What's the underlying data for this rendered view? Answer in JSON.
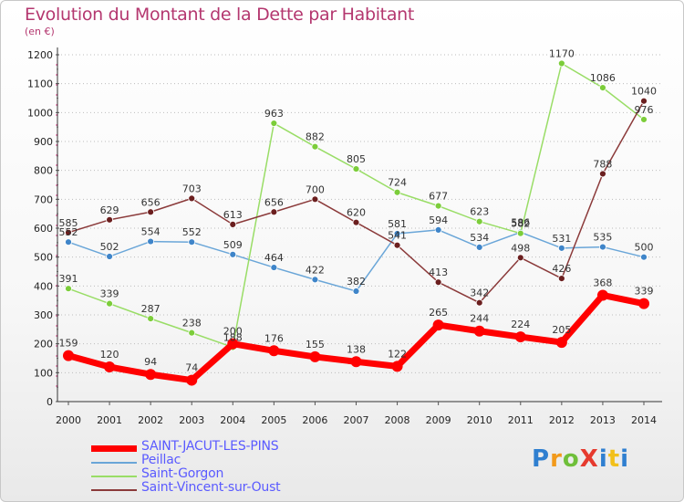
{
  "title": "Evolution du Montant de la Dette par Habitant",
  "unit_label": "(en €)",
  "logo_text": "ProXiti",
  "colors": {
    "title": "#b4376f",
    "legend_text": "#5a5aff",
    "logo_p": "#2f7fd0",
    "logo_r": "#f29a1b",
    "logo_o": "#6fbf3a",
    "logo_x": "#e63a2e",
    "logo_i": "#2f7fd0",
    "logo_t": "#f2c01b"
  },
  "chart_data": {
    "type": "line",
    "x": [
      2000,
      2001,
      2002,
      2003,
      2004,
      2005,
      2006,
      2007,
      2008,
      2009,
      2010,
      2011,
      2012,
      2013,
      2014
    ],
    "ylim": [
      0,
      1200
    ],
    "yticks": [
      0,
      100,
      200,
      300,
      400,
      500,
      600,
      700,
      800,
      900,
      1000,
      1100,
      1200
    ],
    "grid": "horizontal-dotted",
    "legend_position": "bottom-left",
    "series": [
      {
        "name": "SAINT-JACUT-LES-PINS",
        "color": "#ff0000",
        "point_color": "#ff0000",
        "width": 7,
        "marker": 6,
        "values": [
          159,
          120,
          94,
          74,
          200,
          176,
          155,
          138,
          122,
          265,
          244,
          224,
          205,
          368,
          339
        ]
      },
      {
        "name": "Peillac",
        "color": "#6aa6d8",
        "point_color": "#3f85c9",
        "width": 1.5,
        "marker": 3.5,
        "values": [
          552,
          502,
          554,
          552,
          509,
          464,
          422,
          382,
          581,
          594,
          534,
          586,
          531,
          535,
          500
        ]
      },
      {
        "name": "Saint-Gorgon",
        "color": "#99dd66",
        "point_color": "#7ccd3a",
        "width": 1.5,
        "marker": 3.5,
        "values": [
          391,
          339,
          287,
          238,
          188,
          963,
          882,
          805,
          724,
          677,
          623,
          582,
          1170,
          1086,
          976
        ]
      },
      {
        "name": "Saint-Vincent-sur-Oust",
        "color": "#8b3a3a",
        "point_color": "#6b1f1f",
        "width": 1.5,
        "marker": 3.5,
        "values": [
          585,
          629,
          656,
          703,
          613,
          656,
          700,
          620,
          541,
          413,
          342,
          498,
          426,
          788,
          1040
        ]
      }
    ]
  }
}
